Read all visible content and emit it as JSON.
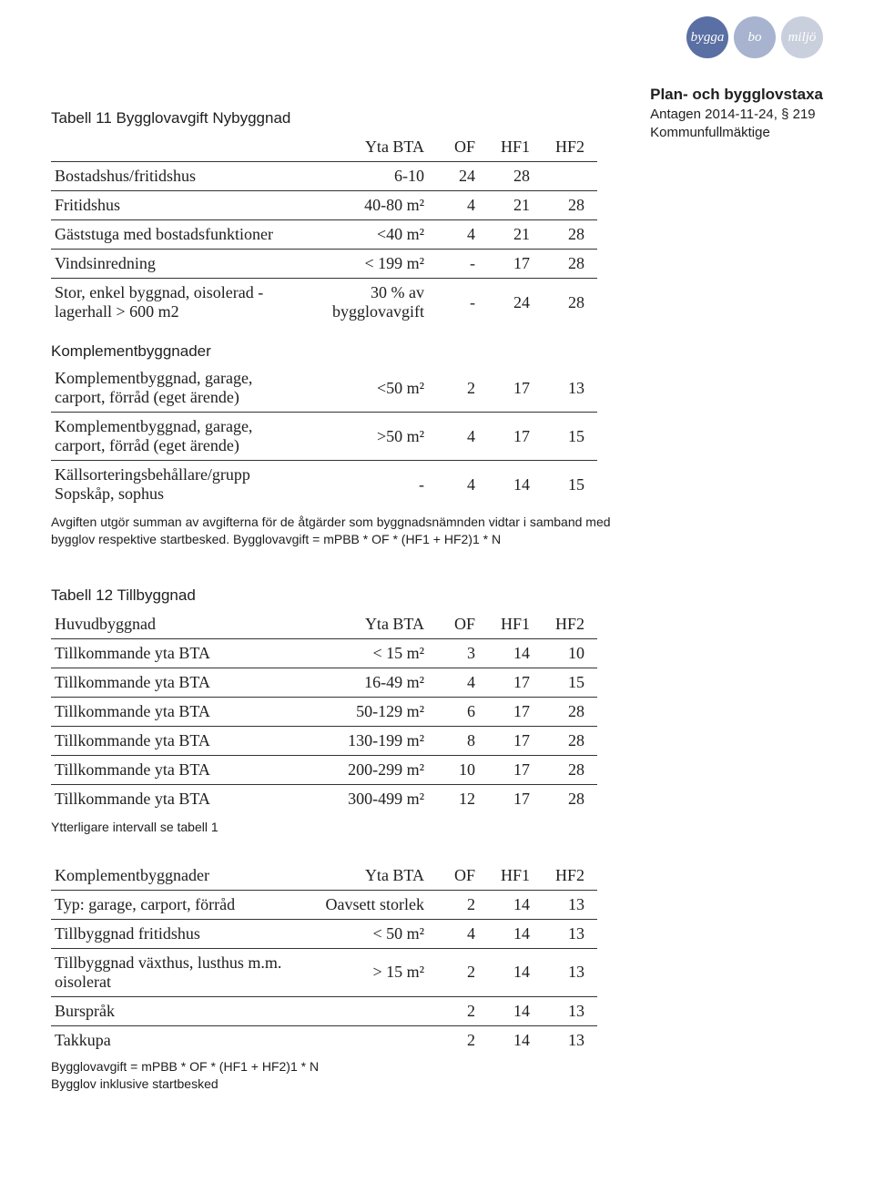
{
  "colors": {
    "badge_bygga": "#5a6fa3",
    "badge_bo": "#a7b3cf",
    "badge_miljo": "#c9cfdd",
    "badge_text": "#ffffff",
    "text": "#202020",
    "rule": "#333333",
    "background": "#ffffff"
  },
  "fonts": {
    "serif": "Adobe Garamond Pro, Garamond, Times New Roman, serif",
    "sans": "Segoe UI, Arial, sans-serif",
    "title_size_pt": 13,
    "body_size_pt": 13
  },
  "header": {
    "badges": [
      "bygga",
      "bo",
      "miljö"
    ],
    "doc_title": "Plan- och bygglovstaxa",
    "doc_subtitle1": "Antagen 2014-11-24, § 219",
    "doc_subtitle2": "Kommunfullmäktige"
  },
  "tabell11": {
    "title": "Tabell 11 Bygglovavgift Nybyggnad",
    "columns": [
      "",
      "Yta BTA",
      "OF",
      "HF1",
      "HF2"
    ],
    "rows": [
      {
        "label": "Bostadshus/fritidshus",
        "yta": "6-10",
        "of": "24",
        "hf1": "28",
        "hf2": ""
      },
      {
        "label": "Fritidshus",
        "yta": "40-80 m²",
        "of": "4",
        "hf1": "21",
        "hf2": "28"
      },
      {
        "label": "Gäststuga med bostadsfunktioner",
        "yta": "<40 m²",
        "of": "4",
        "hf1": "21",
        "hf2": "28"
      },
      {
        "label": "Vindsinredning",
        "yta": "< 199 m²",
        "of": "-",
        "hf1": "17",
        "hf2": "28"
      },
      {
        "label": "Stor, enkel byggnad, oisolerad -lagerhall > 600 m2",
        "yta": "30 % av bygglovavgift",
        "of": "-",
        "hf1": "24",
        "hf2": "28"
      }
    ],
    "sub_title": "Komplementbyggnader",
    "sub_rows": [
      {
        "label": "Komplementbyggnad, garage, carport, förråd (eget ärende)",
        "yta": "<50 m²",
        "of": "2",
        "hf1": "17",
        "hf2": "13"
      },
      {
        "label": "Komplementbyggnad, garage, carport, förråd (eget ärende)",
        "yta": ">50 m²",
        "of": "4",
        "hf1": "17",
        "hf2": "15"
      },
      {
        "label": "Källsorteringsbehållare/grupp Sopskåp, sophus",
        "yta": "-",
        "of": "4",
        "hf1": "14",
        "hf2": "15"
      }
    ],
    "note": "Avgiften utgör summan av avgifterna för de åtgärder som byggnadsnämnden vidtar i samband med bygglov respektive startbesked. Bygglovavgift = mPBB * OF * (HF1 + HF2)1 * N"
  },
  "tabell12": {
    "title": "Tabell 12 Tillbyggnad",
    "columns": [
      "Huvudbyggnad",
      "Yta BTA",
      "OF",
      "HF1",
      "HF2"
    ],
    "rows": [
      {
        "label": "Tillkommande yta BTA",
        "yta": "< 15 m²",
        "of": "3",
        "hf1": "14",
        "hf2": "10"
      },
      {
        "label": "Tillkommande yta BTA",
        "yta": "16-49 m²",
        "of": "4",
        "hf1": "17",
        "hf2": "15"
      },
      {
        "label": "Tillkommande yta BTA",
        "yta": "50-129 m²",
        "of": "6",
        "hf1": "17",
        "hf2": "28"
      },
      {
        "label": "Tillkommande yta BTA",
        "yta": "130-199 m²",
        "of": "8",
        "hf1": "17",
        "hf2": "28"
      },
      {
        "label": "Tillkommande yta BTA",
        "yta": "200-299 m²",
        "of": "10",
        "hf1": "17",
        "hf2": "28"
      },
      {
        "label": "Tillkommande yta BTA",
        "yta": "300-499 m²",
        "of": "12",
        "hf1": "17",
        "hf2": "28"
      }
    ],
    "note1": "Ytterligare intervall se tabell 1",
    "sub_columns": [
      "Komplementbyggnader",
      "Yta BTA",
      "OF",
      "HF1",
      "HF2"
    ],
    "sub_rows": [
      {
        "label": "Typ: garage, carport, förråd",
        "yta": "Oavsett storlek",
        "of": "2",
        "hf1": "14",
        "hf2": "13"
      },
      {
        "label": "Tillbyggnad fritidshus",
        "yta": "< 50 m²",
        "of": "4",
        "hf1": "14",
        "hf2": "13"
      },
      {
        "label": "Tillbyggnad växthus, lusthus m.m. oisolerat",
        "yta": "> 15 m²",
        "of": "2",
        "hf1": "14",
        "hf2": "13"
      },
      {
        "label": "Burspråk",
        "yta": "",
        "of": "2",
        "hf1": "14",
        "hf2": "13"
      },
      {
        "label": "Takkupa",
        "yta": "",
        "of": "2",
        "hf1": "14",
        "hf2": "13"
      }
    ],
    "note2a": "Bygglovavgift = mPBB * OF * (HF1 + HF2)1 * N",
    "note2b": "Bygglov inklusive startbesked"
  }
}
